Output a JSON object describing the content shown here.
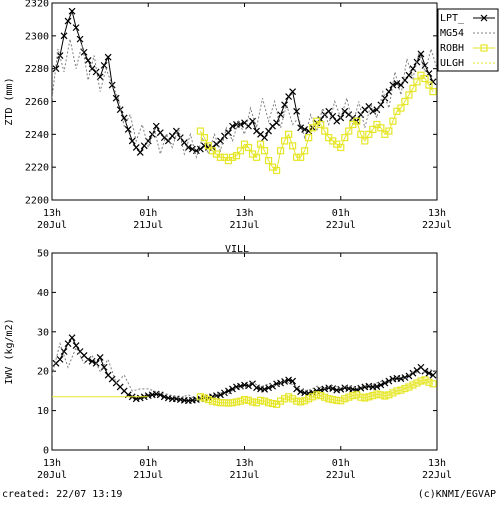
{
  "chart_data": [
    {
      "type": "line",
      "ylabel": "ZTD (mm)",
      "ylim": [
        2200,
        2320
      ],
      "y_ticks": [
        2200,
        2220,
        2240,
        2260,
        2280,
        2300,
        2320
      ],
      "x_range_hours": [
        0,
        96
      ],
      "x_ticks": [
        {
          "h": 0,
          "top": "13h",
          "bottom": "20Jul"
        },
        {
          "h": 24,
          "top": "01h",
          "bottom": "21Jul"
        },
        {
          "h": 48,
          "top": "13h",
          "bottom": "21Jul"
        },
        {
          "h": 72,
          "top": "01h",
          "bottom": "22Jul"
        },
        {
          "h": 96,
          "top": "13h",
          "bottom": "22Jul"
        }
      ],
      "legend_placement": "right",
      "series": [
        {
          "name": "LPT_",
          "color": "#000000",
          "marker": "x",
          "x": [
            1,
            2,
            3,
            4,
            5,
            6,
            7,
            8,
            9,
            10,
            11,
            12,
            13,
            14,
            15,
            16,
            17,
            18,
            19,
            20,
            21,
            22,
            23,
            24,
            25,
            26,
            27,
            28,
            29,
            30,
            31,
            32,
            33,
            34,
            35,
            36,
            37,
            38,
            39,
            40,
            41,
            42,
            43,
            44,
            45,
            46,
            47,
            48,
            49,
            50,
            51,
            52,
            53,
            54,
            55,
            56,
            57,
            58,
            59,
            60,
            61,
            62,
            63,
            64,
            65,
            66,
            67,
            68,
            69,
            70,
            71,
            72,
            73,
            74,
            75,
            76,
            77,
            78,
            79,
            80,
            81,
            82,
            83,
            84,
            85,
            86,
            87,
            88,
            89,
            90,
            91,
            92,
            93,
            94,
            95
          ],
          "y": [
            2280,
            2288,
            2300,
            2309,
            2315,
            2305,
            2298,
            2290,
            2285,
            2280,
            2278,
            2275,
            2282,
            2287,
            2270,
            2262,
            2255,
            2250,
            2243,
            2236,
            2232,
            2229,
            2233,
            2236,
            2240,
            2245,
            2241,
            2238,
            2236,
            2239,
            2242,
            2238,
            2235,
            2232,
            2231,
            2230,
            2231,
            2233,
            2232,
            2232,
            2234,
            2236,
            2239,
            2241,
            2245,
            2246,
            2246,
            2247,
            2245,
            2248,
            2242,
            2240,
            2238,
            2242,
            2245,
            2247,
            2252,
            2258,
            2263,
            2266,
            2254,
            2244,
            2243,
            2242,
            2244,
            2247,
            2249,
            2252,
            2254,
            2251,
            2248,
            2250,
            2254,
            2252,
            2250,
            2248,
            2252,
            2255,
            2257,
            2254,
            2255,
            2258,
            2262,
            2266,
            2270,
            2271,
            2270,
            2273,
            2276,
            2280,
            2284,
            2289,
            2282,
            2277,
            2272
          ]
        },
        {
          "name": "MG54",
          "color": "#7f7f7f",
          "marker": "none",
          "dash": "2,2",
          "x": [
            0,
            1.5,
            3,
            4.5,
            6,
            7.5,
            9,
            10.5,
            12,
            13.5,
            15,
            16.5,
            18,
            19.5,
            21,
            22.5,
            24,
            25.5,
            27,
            28.5,
            30,
            31.5,
            33,
            34.5,
            36,
            37.5,
            39,
            40.5,
            42,
            43.5,
            45,
            46.5,
            48,
            49.5,
            51,
            52.5,
            54,
            55.5,
            57,
            58.5,
            60,
            61.5,
            63,
            64.5,
            66,
            67.5,
            69,
            70.5,
            72,
            73.5,
            75,
            76.5,
            78,
            79.5,
            81,
            82.5,
            84,
            85.5,
            87,
            88.5,
            90,
            91.5,
            93,
            94.5,
            96
          ],
          "y": [
            2262,
            2292,
            2278,
            2298,
            2280,
            2295,
            2273,
            2288,
            2266,
            2280,
            2270,
            2262,
            2245,
            2252,
            2236,
            2246,
            2232,
            2243,
            2228,
            2240,
            2232,
            2244,
            2228,
            2240,
            2226,
            2238,
            2228,
            2240,
            2230,
            2244,
            2236,
            2248,
            2240,
            2256,
            2244,
            2262,
            2248,
            2260,
            2244,
            2258,
            2246,
            2250,
            2238,
            2252,
            2242,
            2256,
            2246,
            2260,
            2250,
            2262,
            2246,
            2260,
            2244,
            2258,
            2250,
            2266,
            2256,
            2278,
            2264,
            2286,
            2274,
            2290,
            2278,
            2292,
            2280
          ]
        },
        {
          "name": "ROBH",
          "color": "#e6e62a",
          "marker": "square",
          "x": [
            37,
            38,
            39,
            40,
            41,
            42,
            43,
            44,
            45,
            46,
            47,
            48,
            49,
            50,
            51,
            52,
            53,
            54,
            55,
            56,
            57,
            58,
            59,
            60,
            61,
            62,
            63,
            64,
            65,
            66,
            67,
            68,
            69,
            70,
            71,
            72,
            73,
            74,
            75,
            76,
            77,
            78,
            79,
            80,
            81,
            82,
            83,
            84,
            85,
            86,
            87,
            88,
            89,
            90,
            91,
            92,
            93,
            94,
            95
          ],
          "y": [
            2242,
            2238,
            2233,
            2230,
            2228,
            2226,
            2226,
            2224,
            2226,
            2227,
            2230,
            2234,
            2232,
            2228,
            2226,
            2234,
            2230,
            2224,
            2220,
            2218,
            2230,
            2236,
            2240,
            2233,
            2226,
            2226,
            2230,
            2238,
            2244,
            2248,
            2246,
            2242,
            2238,
            2236,
            2234,
            2232,
            2238,
            2242,
            2246,
            2248,
            2240,
            2236,
            2240,
            2243,
            2246,
            2244,
            2240,
            2242,
            2248,
            2254,
            2256,
            2260,
            2264,
            2268,
            2272,
            2276,
            2274,
            2270,
            2266
          ]
        },
        {
          "name": "ULGH",
          "color": "#e6e62a",
          "marker": "none",
          "dash": "2,2",
          "x": [],
          "y": []
        }
      ]
    },
    {
      "type": "line",
      "ylabel": "IWV (kg/m2)",
      "ylim": [
        0,
        50
      ],
      "y_ticks": [
        0,
        10,
        20,
        30,
        40,
        50
      ],
      "x_range_hours": [
        0,
        96
      ],
      "x_ticks": [
        {
          "h": 0,
          "top": "13h",
          "bottom": "20Jul"
        },
        {
          "h": 24,
          "top": "01h",
          "bottom": "21Jul"
        },
        {
          "h": 48,
          "top": "13h",
          "bottom": "21Jul"
        },
        {
          "h": 72,
          "top": "01h",
          "bottom": "22Jul"
        },
        {
          "h": 96,
          "top": "13h",
          "bottom": "22Jul"
        }
      ],
      "series": [
        {
          "name": "LPT_",
          "color": "#000000",
          "marker": "x",
          "x": [
            1,
            2,
            3,
            4,
            5,
            6,
            7,
            8,
            9,
            10,
            11,
            12,
            13,
            14,
            15,
            16,
            17,
            18,
            19,
            20,
            21,
            22,
            23,
            24,
            25,
            26,
            27,
            28,
            29,
            30,
            31,
            32,
            33,
            34,
            35,
            36,
            37,
            38,
            39,
            40,
            41,
            42,
            43,
            44,
            45,
            46,
            47,
            48,
            49,
            50,
            51,
            52,
            53,
            54,
            55,
            56,
            57,
            58,
            59,
            60,
            61,
            62,
            63,
            64,
            65,
            66,
            67,
            68,
            69,
            70,
            71,
            72,
            73,
            74,
            75,
            76,
            77,
            78,
            79,
            80,
            81,
            82,
            83,
            84,
            85,
            86,
            87,
            88,
            89,
            90,
            91,
            92,
            93,
            94,
            95
          ],
          "y": [
            22,
            23,
            25,
            27,
            28.5,
            26.5,
            25,
            24,
            23,
            22.5,
            22,
            23.5,
            21,
            19,
            18,
            17,
            16,
            15,
            14,
            13.5,
            13,
            13.2,
            13.5,
            13.8,
            14,
            14.2,
            14,
            13.5,
            13.2,
            13,
            13,
            12.8,
            12.6,
            12.5,
            12.6,
            12.8,
            13,
            13.2,
            13.3,
            13.5,
            13.8,
            14,
            14.5,
            15,
            15.5,
            16,
            16.2,
            16.5,
            16.3,
            16.8,
            15.8,
            15.5,
            15.4,
            15.8,
            16.2,
            16.8,
            17,
            17.4,
            17.8,
            17.5,
            15.5,
            14.8,
            14.5,
            14.4,
            14.6,
            15,
            15.2,
            15.5,
            15.8,
            15.6,
            15.2,
            15.4,
            15.8,
            15.6,
            15.4,
            15.3,
            15.7,
            16,
            16.2,
            16,
            16.1,
            16.5,
            17,
            17.5,
            18,
            18.2,
            18.1,
            18.4,
            18.8,
            19.5,
            20.2,
            21,
            20,
            19.5,
            19
          ]
        },
        {
          "name": "MG54",
          "color": "#7f7f7f",
          "marker": "none",
          "dash": "2,2",
          "x": [
            0,
            2,
            4,
            6,
            8,
            10,
            12,
            14,
            16,
            18,
            20,
            22,
            24,
            26,
            28,
            30,
            32,
            34,
            36,
            38,
            40,
            42,
            44,
            46,
            48,
            50,
            52,
            54,
            56,
            58,
            60,
            62,
            64,
            66,
            68,
            70,
            72,
            74,
            76,
            78,
            80,
            82,
            84,
            86,
            88,
            90,
            92,
            94,
            96
          ],
          "y": [
            19,
            27,
            21,
            26,
            22,
            24,
            20,
            23,
            17,
            19,
            15,
            15.5,
            15.5,
            14.8,
            14.2,
            13.8,
            13.2,
            14,
            12.8,
            13.6,
            13.2,
            14.6,
            14.2,
            16,
            15.6,
            17.2,
            16,
            16.8,
            16.2,
            17.6,
            16.6,
            15.4,
            15,
            16.2,
            15.6,
            16.4,
            15.6,
            16.4,
            15.6,
            16.2,
            16.6,
            17.4,
            17.2,
            18.6,
            18,
            19.8,
            19.4,
            20.4,
            20
          ]
        },
        {
          "name": "ROBH",
          "color": "#e6e62a",
          "marker": "square",
          "x": [
            37,
            38,
            39,
            40,
            41,
            42,
            43,
            44,
            45,
            46,
            47,
            48,
            49,
            50,
            51,
            52,
            53,
            54,
            55,
            56,
            57,
            58,
            59,
            60,
            61,
            62,
            63,
            64,
            65,
            66,
            67,
            68,
            69,
            70,
            71,
            72,
            73,
            74,
            75,
            76,
            77,
            78,
            79,
            80,
            81,
            82,
            83,
            84,
            85,
            86,
            87,
            88,
            89,
            90,
            91,
            92,
            93,
            94,
            95
          ],
          "y": [
            13.5,
            13.2,
            12.8,
            12.4,
            12.2,
            12,
            12,
            11.9,
            12,
            12.2,
            12.4,
            12.8,
            12.6,
            12.2,
            12,
            12.6,
            12.4,
            12,
            11.8,
            11.6,
            12.4,
            13,
            13.5,
            13,
            12.4,
            12.2,
            12.5,
            13,
            13.5,
            14,
            13.8,
            13.4,
            13,
            12.8,
            12.6,
            12.5,
            13,
            13.4,
            13.8,
            14,
            13.4,
            13.2,
            13.5,
            13.8,
            14.2,
            14,
            13.7,
            14,
            14.5,
            15,
            15.2,
            15.6,
            16,
            16.5,
            17,
            17.5,
            17.8,
            17.2,
            16.8
          ]
        },
        {
          "name": "ULGH",
          "color": "#e6e62a",
          "marker": "none",
          "dash": "none",
          "x": [
            0,
            24
          ],
          "y": [
            13.5,
            13.5
          ]
        }
      ]
    }
  ],
  "mid_label": "VILL",
  "footer": {
    "created": "created: 22/07 13:19",
    "credit": "(c)KNMI/EGVAP"
  }
}
